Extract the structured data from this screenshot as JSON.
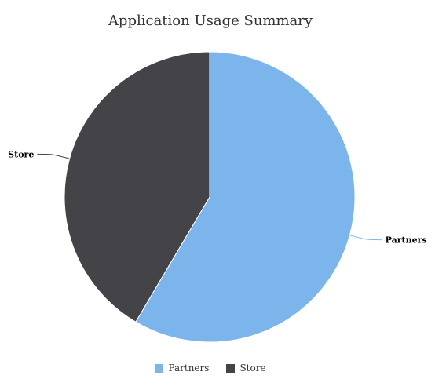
{
  "chart_data": {
    "type": "pie",
    "title": "Application Usage Summary",
    "slices": [
      {
        "name": "Partners",
        "value": 58.5,
        "color": "#7cb5ec"
      },
      {
        "name": "Store",
        "value": 41.5,
        "color": "#434348"
      }
    ],
    "legend_placement": "bottom-center"
  }
}
